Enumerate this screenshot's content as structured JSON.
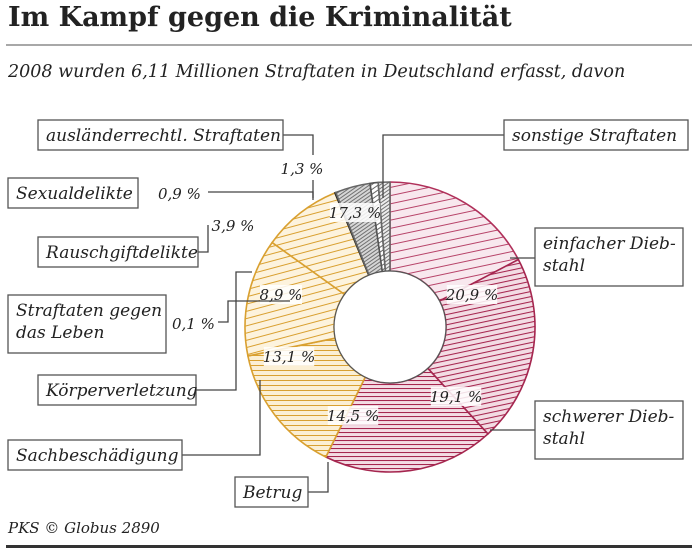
{
  "title": "Im Kampf gegen die Kriminalität",
  "subtitle": "2008 wurden 6,11 Millionen Straftaten in Deutschland erfasst, davon",
  "source": "PKS © Globus 2890",
  "chart_data": {
    "type": "pie",
    "donut": true,
    "unit": "%",
    "slices": [
      {
        "label": "sonstige Straftaten",
        "value": 17.3,
        "value_label": "17,3 %",
        "color": "#b0305a"
      },
      {
        "label": "einfacher Diebstahl",
        "value": 20.9,
        "value_label": "20,9 %",
        "color": "#a5264f"
      },
      {
        "label": "schwerer Diebstahl",
        "value": 19.1,
        "value_label": "19,1 %",
        "color": "#a5264f"
      },
      {
        "label": "Betrug",
        "value": 14.5,
        "value_label": "14,5 %",
        "color": "#d9a030"
      },
      {
        "label": "Sachbeschädigung",
        "value": 13.1,
        "value_label": "13,1 %",
        "color": "#d9a030"
      },
      {
        "label": "Körperverletzung",
        "value": 8.9,
        "value_label": "8,9 %",
        "color": "#d9a030"
      },
      {
        "label": "Straftaten gegen das Leben",
        "value": 0.1,
        "value_label": "0,1 %",
        "color": "#222222"
      },
      {
        "label": "Rauschgiftdelikte",
        "value": 3.9,
        "value_label": "3,9 %",
        "color": "#666666"
      },
      {
        "label": "Sexualdelikte",
        "value": 0.9,
        "value_label": "0,9 %",
        "color": "#555555"
      },
      {
        "label": "ausländerrechtl. Straftaten",
        "value": 1.3,
        "value_label": "1,3 %",
        "color": "#666666"
      }
    ]
  }
}
